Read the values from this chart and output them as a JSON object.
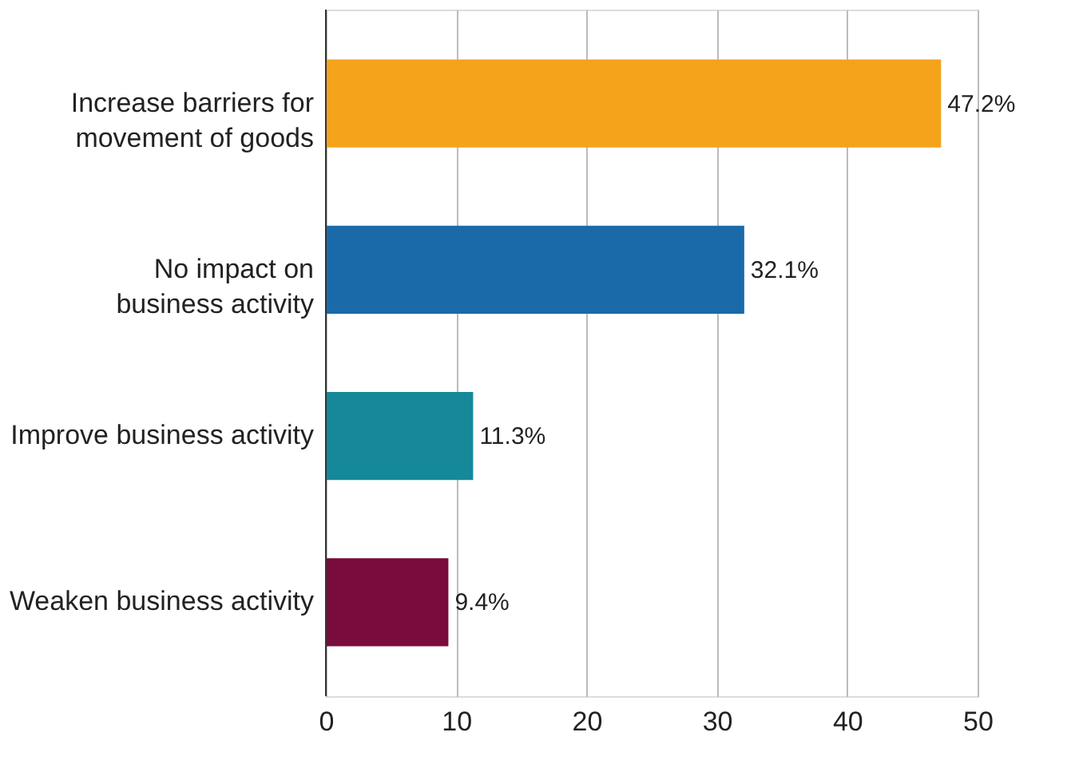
{
  "chart_data": {
    "type": "bar",
    "orientation": "horizontal",
    "categories": [
      "Increase barriers for\nmovement of goods",
      "No impact on\nbusiness activity",
      "Improve business activity",
      "Weaken business activity"
    ],
    "values": [
      47.2,
      32.1,
      11.3,
      9.4
    ],
    "colors": [
      "#f5a31b",
      "#1a6aa9",
      "#15889a",
      "#7a0c3d"
    ],
    "value_labels": [
      "47.2%",
      "32.1%",
      "11.3%",
      "9.4%"
    ],
    "xlim": [
      0,
      50
    ],
    "xticks": [
      0,
      10,
      20,
      30,
      40,
      50
    ],
    "grid": "x"
  }
}
